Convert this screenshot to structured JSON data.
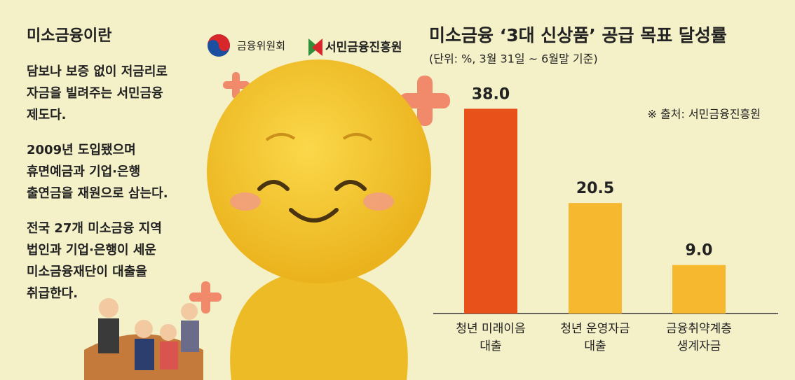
{
  "sidebar": {
    "title": "미소금융이란",
    "paragraphs": [
      [
        "담보나 보증 없이 저금리로",
        "자금을 빌려주는 서민금융",
        "제도다."
      ],
      [
        "2009년 도입됐으며",
        "휴면예금과 기업·은행",
        "출연금을 재원으로 삼는다."
      ],
      [
        "전국 27개 미소금융 지역",
        "법인과 기업·은행이 세운",
        "미소금융재단이 대출을",
        "취급한다."
      ]
    ]
  },
  "logos": [
    "금융위원회",
    "서민금융진흥원"
  ],
  "chart_data": {
    "type": "bar",
    "title": "미소금융 ‘3대 신상품’ 공급 목표 달성률",
    "subtitle": "(단위: %, 3월 31일 ~ 6월말 기준)",
    "source": "※ 출처: 서민금융진흥원",
    "categories": [
      "청년 미래이음\n대출",
      "청년 운영자금\n대출",
      "금융취약계층\n생계자금"
    ],
    "values": [
      38.0,
      20.5,
      9.0
    ],
    "value_labels": [
      "38.0",
      "20.5",
      "9.0"
    ],
    "colors": [
      "#e8521a",
      "#f5b82e",
      "#f5b82e"
    ],
    "ylim": [
      0,
      40
    ]
  }
}
